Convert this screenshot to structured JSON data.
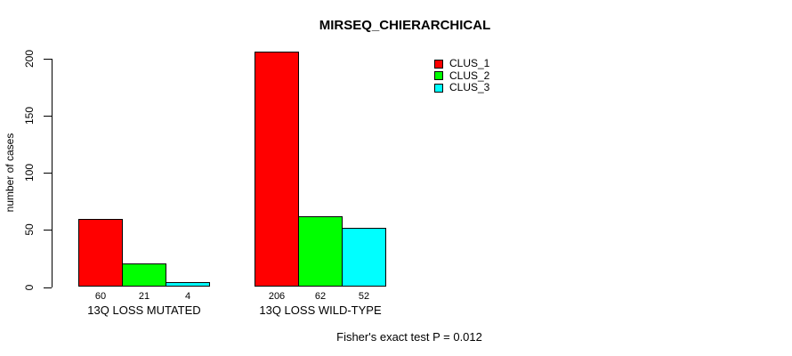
{
  "chart_data": {
    "type": "bar",
    "title": "MIRSEQ_CHIERARCHICAL",
    "ylabel": "number of cases",
    "xlabel": "",
    "annotation": "Fisher's exact test P = 0.012",
    "categories": [
      "13Q LOSS MUTATED",
      "13Q LOSS WILD-TYPE"
    ],
    "series": [
      {
        "name": "CLUS_1",
        "color": "#FF0000",
        "values": [
          60,
          206
        ]
      },
      {
        "name": "CLUS_2",
        "color": "#00FF00",
        "values": [
          21,
          62
        ]
      },
      {
        "name": "CLUS_3",
        "color": "#00FFFF",
        "values": [
          4,
          52
        ]
      }
    ],
    "ylim": [
      0,
      200
    ],
    "yticks": [
      0,
      50,
      100,
      150,
      200
    ],
    "grid": false,
    "legend_position": "top-right",
    "bar_value_labels_shown": true,
    "background_color": "#FFFFFF",
    "bar_border_color": "#000000"
  }
}
